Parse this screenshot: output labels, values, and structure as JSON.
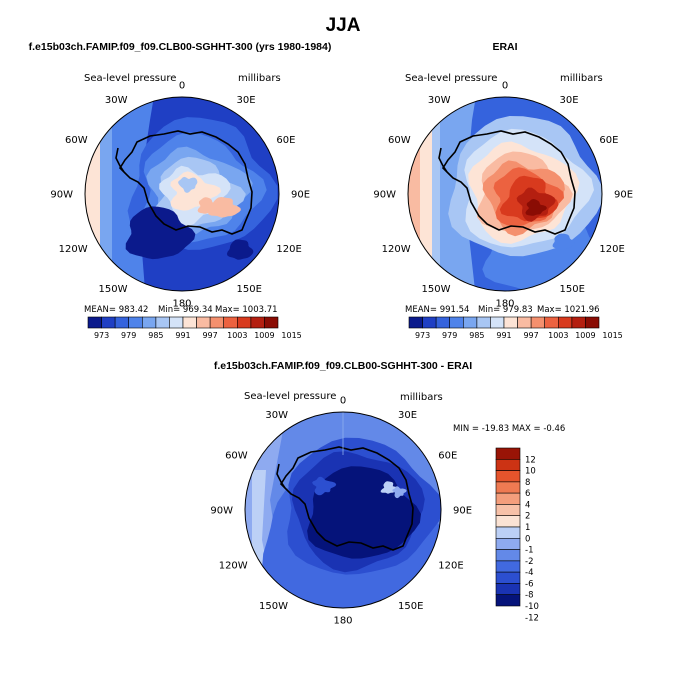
{
  "figure_title": "JJA",
  "palette": {
    "full": [
      "#0b1a8c",
      "#1f3fc4",
      "#3563dd",
      "#4f83ea",
      "#79a6f0",
      "#a8c6f4",
      "#d4e3f8",
      "#fde4d6",
      "#f9bba2",
      "#f4906e",
      "#ec6240",
      "#d83a1e",
      "#b41f10",
      "#8a0c04"
    ],
    "diff": [
      "#05137a",
      "#1a33b3",
      "#2c4fd0",
      "#4169e0",
      "#6389e8",
      "#8eaaf0",
      "#bcd0f6",
      "#fbe3d4",
      "#f7c1a8",
      "#f49e7c",
      "#ef7a52",
      "#e5542c",
      "#cc3314",
      "#991406"
    ],
    "coast": "#000000"
  },
  "chart_data": [
    {
      "id": "model",
      "type": "heatmap",
      "projection": "south-polar stereographic",
      "title": "f.e15b03ch.FAMIP.f09_f09.CLB00-SGHHT-300 (yrs 1980-1984)",
      "field": "Sea-level pressure",
      "units": "millibars",
      "lon_labels": [
        "0",
        "30E",
        "60E",
        "90E",
        "120E",
        "150E",
        "180",
        "150W",
        "120W",
        "90W",
        "60W",
        "30W"
      ],
      "stats": {
        "mean": "MEAN= 983.42",
        "min": "Min= 969.34",
        "max": "Max= 1003.71"
      },
      "colorbar_ticks": [
        "973",
        "979",
        "985",
        "991",
        "997",
        "1003",
        "1009",
        "1015"
      ]
    },
    {
      "id": "obs",
      "type": "heatmap",
      "projection": "south-polar stereographic",
      "title": "ERAI",
      "field": "Sea-level pressure",
      "units": "millibars",
      "lon_labels": [
        "0",
        "30E",
        "60E",
        "90E",
        "120E",
        "150E",
        "180",
        "150W",
        "120W",
        "90W",
        "60W",
        "30W"
      ],
      "stats": {
        "mean": "MEAN= 991.54",
        "min": "Min= 979.83",
        "max": "Max= 1021.96"
      },
      "colorbar_ticks": [
        "973",
        "979",
        "985",
        "991",
        "997",
        "1003",
        "1009",
        "1015"
      ]
    },
    {
      "id": "diff",
      "type": "heatmap",
      "projection": "south-polar stereographic",
      "title": "f.e15b03ch.FAMIP.f09_f09.CLB00-SGHHT-300 - ERAI",
      "field": "Sea-level pressure",
      "units": "millibars",
      "lon_labels": [
        "0",
        "30E",
        "60E",
        "90E",
        "120E",
        "150E",
        "180",
        "150W",
        "120W",
        "90W",
        "60W",
        "30W"
      ],
      "range_text": "MIN = -19.83  MAX =  -0.46",
      "colorbar_ticks": [
        "12",
        "10",
        "8",
        "6",
        "4",
        "2",
        "1",
        "0",
        "-1",
        "-2",
        "-4",
        "-6",
        "-8",
        "-10",
        "-12"
      ]
    }
  ]
}
